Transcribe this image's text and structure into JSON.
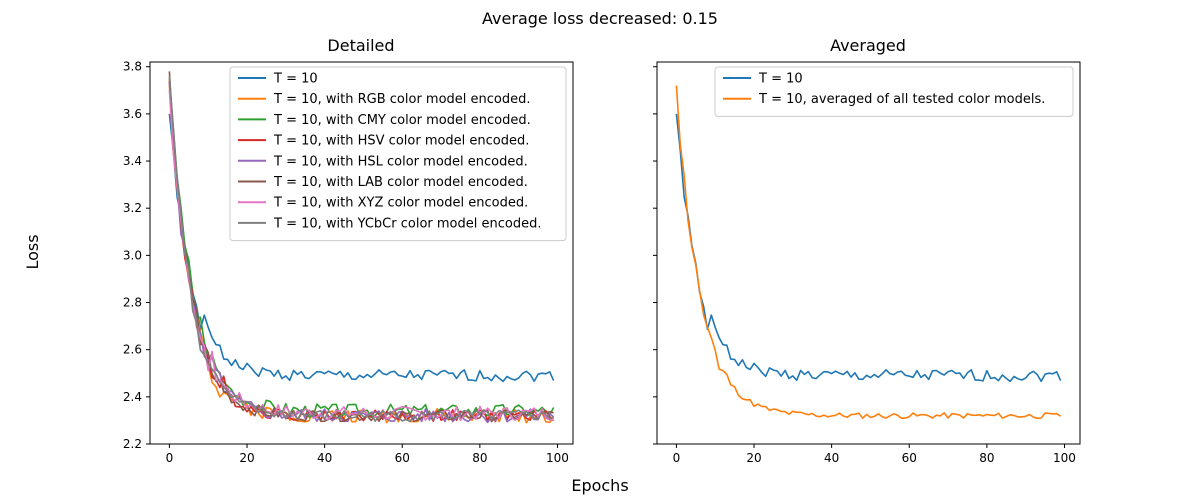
{
  "figure": {
    "suptitle": "Average loss decreased: 0.15",
    "xlabel": "Epochs",
    "ylabel": "Loss"
  },
  "colors": {
    "c0": "#1f77b4",
    "c1": "#ff7f0e",
    "c2": "#2ca02c",
    "c3": "#d62728",
    "c4": "#9467bd",
    "c5": "#8c564b",
    "c6": "#e377c2",
    "c7": "#7f7f7f"
  },
  "chart_data": [
    {
      "type": "line",
      "title": "Detailed",
      "xlim": [
        -5,
        104
      ],
      "ylim": [
        2.2,
        3.82
      ],
      "x_ticks": [
        0,
        20,
        40,
        60,
        80,
        100
      ],
      "y_ticks": [
        "2.2",
        "2.4",
        "2.6",
        "2.8",
        "3.0",
        "3.2",
        "3.4",
        "3.6",
        "3.8"
      ],
      "legend_position": "top-right",
      "series": [
        {
          "name": "T = 10",
          "color": "#1f77b4",
          "start": 3.6,
          "plateau": 2.49,
          "decay": 5.5,
          "noise": 0.025,
          "seed": 1
        },
        {
          "name": "T = 10, with RGB color model encoded.",
          "color": "#ff7f0e",
          "start": 3.72,
          "plateau": 2.32,
          "decay": 5.5,
          "noise": 0.03,
          "seed": 2
        },
        {
          "name": "T = 10, with CMY color model encoded.",
          "color": "#2ca02c",
          "start": 3.75,
          "plateau": 2.34,
          "decay": 5.8,
          "noise": 0.03,
          "seed": 3
        },
        {
          "name": "T = 10, with HSV color model encoded.",
          "color": "#d62728",
          "start": 3.74,
          "plateau": 2.32,
          "decay": 5.5,
          "noise": 0.025,
          "seed": 4
        },
        {
          "name": "T = 10, with HSL color model encoded.",
          "color": "#9467bd",
          "start": 3.73,
          "plateau": 2.32,
          "decay": 5.6,
          "noise": 0.03,
          "seed": 5
        },
        {
          "name": "T = 10, with LAB color model encoded.",
          "color": "#8c564b",
          "start": 3.78,
          "plateau": 2.32,
          "decay": 5.4,
          "noise": 0.025,
          "seed": 6
        },
        {
          "name": "T = 10, with XYZ color model encoded.",
          "color": "#e377c2",
          "start": 3.7,
          "plateau": 2.33,
          "decay": 5.7,
          "noise": 0.03,
          "seed": 7
        },
        {
          "name": "T = 10, with YCbCr color model encoded.",
          "color": "#7f7f7f",
          "start": 3.76,
          "plateau": 2.32,
          "decay": 5.5,
          "noise": 0.025,
          "seed": 8
        }
      ]
    },
    {
      "type": "line",
      "title": "Averaged",
      "xlim": [
        -5,
        104
      ],
      "ylim": [
        2.2,
        3.82
      ],
      "x_ticks": [
        0,
        20,
        40,
        60,
        80,
        100
      ],
      "y_ticks": [
        "2.2",
        "2.4",
        "2.6",
        "2.8",
        "3.0",
        "3.2",
        "3.4",
        "3.6",
        "3.8"
      ],
      "legend_position": "top-right",
      "series": [
        {
          "name": "T = 10",
          "color": "#1f77b4",
          "start": 3.6,
          "plateau": 2.49,
          "decay": 5.5,
          "noise": 0.025,
          "seed": 1
        },
        {
          "name": "T = 10, averaged of all tested color models.",
          "color": "#ff7f0e",
          "start": 3.72,
          "plateau": 2.32,
          "decay": 6.0,
          "noise": 0.012,
          "seed": 11
        }
      ]
    }
  ]
}
